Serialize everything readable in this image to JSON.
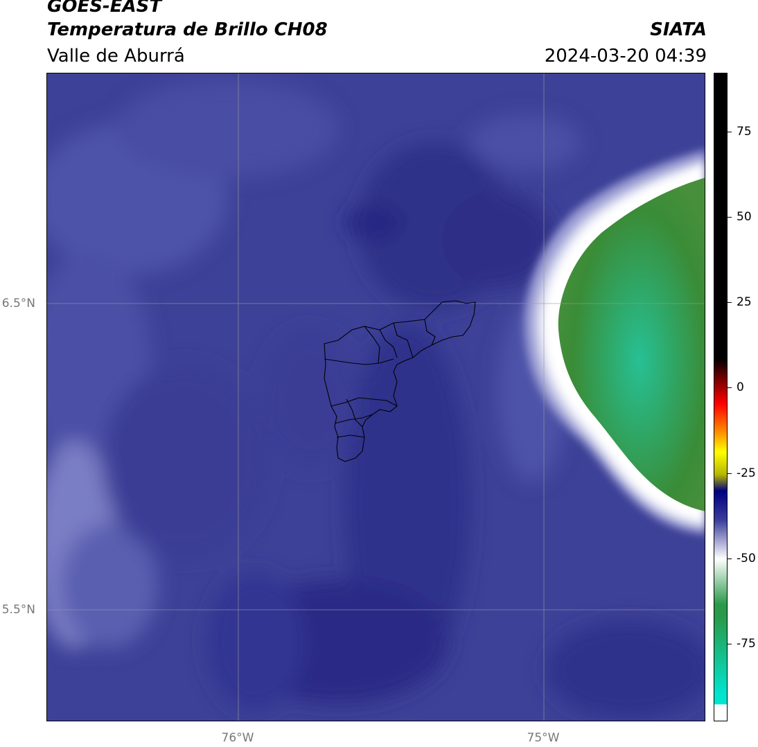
{
  "header": {
    "title_line1": "GOES-EAST",
    "title_line2": "Temperatura de Brillo CH08",
    "subtitle": "Valle de Aburrá",
    "brand": "SIATA",
    "timestamp": "2024-03-20 04:39"
  },
  "map": {
    "lat_labels": [
      "6.5°N",
      "5.5°N"
    ],
    "lon_labels": [
      "76°W",
      "75°W"
    ],
    "colors": {
      "background_blue": "#3c3f95",
      "dark_blue": "#2a2b86",
      "light_blue": "#5a5fb0",
      "white_band": "#ffffff",
      "green": "#3a8f3a",
      "teal": "#2ab88a",
      "grid": "#999999",
      "boundary": "#000000"
    }
  },
  "colorbar": {
    "tick_labels": [
      "75",
      "50",
      "25",
      "0",
      "-25",
      "-50",
      "-75"
    ],
    "colors": [
      "#ffffff",
      "#00e5d0",
      "#2a9a4a",
      "#ffffff",
      "#3a3d9a",
      "#000080",
      "#b5b500",
      "#ffff00",
      "#ff8000",
      "#ff0000",
      "#000000"
    ]
  }
}
